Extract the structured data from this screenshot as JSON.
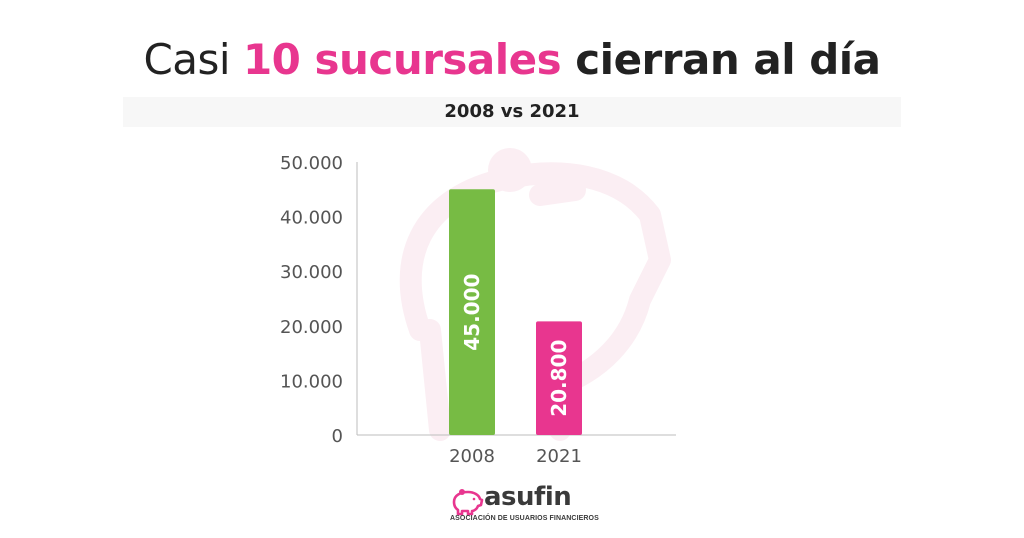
{
  "header": {
    "title_part1": "Casi ",
    "title_highlight": "10 sucursales",
    "title_part2": " cierran al día",
    "subtitle": "2008 vs 2021"
  },
  "colors": {
    "highlight": "#e8368f",
    "bar_2008": "#77bb44",
    "bar_2021": "#e8368f",
    "title_dark": "#222222",
    "axis_text": "#555555",
    "watermark": "#fbeef3"
  },
  "chart_data": {
    "type": "bar",
    "categories": [
      "2008",
      "2021"
    ],
    "values": [
      45000,
      20800
    ],
    "value_labels": [
      "45.000",
      "20.800"
    ],
    "bar_colors": [
      "#77bb44",
      "#e8368f"
    ],
    "ylim": [
      0,
      50000
    ],
    "y_ticks": [
      0,
      10000,
      20000,
      30000,
      40000,
      50000
    ],
    "y_tick_labels": [
      "0",
      "10.000",
      "20.000",
      "30.000",
      "40.000",
      "50.000"
    ],
    "title": "",
    "xlabel": "",
    "ylabel": "",
    "grid": false,
    "value_label_orientation": "vertical"
  },
  "logo": {
    "name": "asufin",
    "tagline": "ASOCIACIÓN DE USUARIOS FINANCIEROS",
    "icon": "piggy-bank-icon"
  }
}
